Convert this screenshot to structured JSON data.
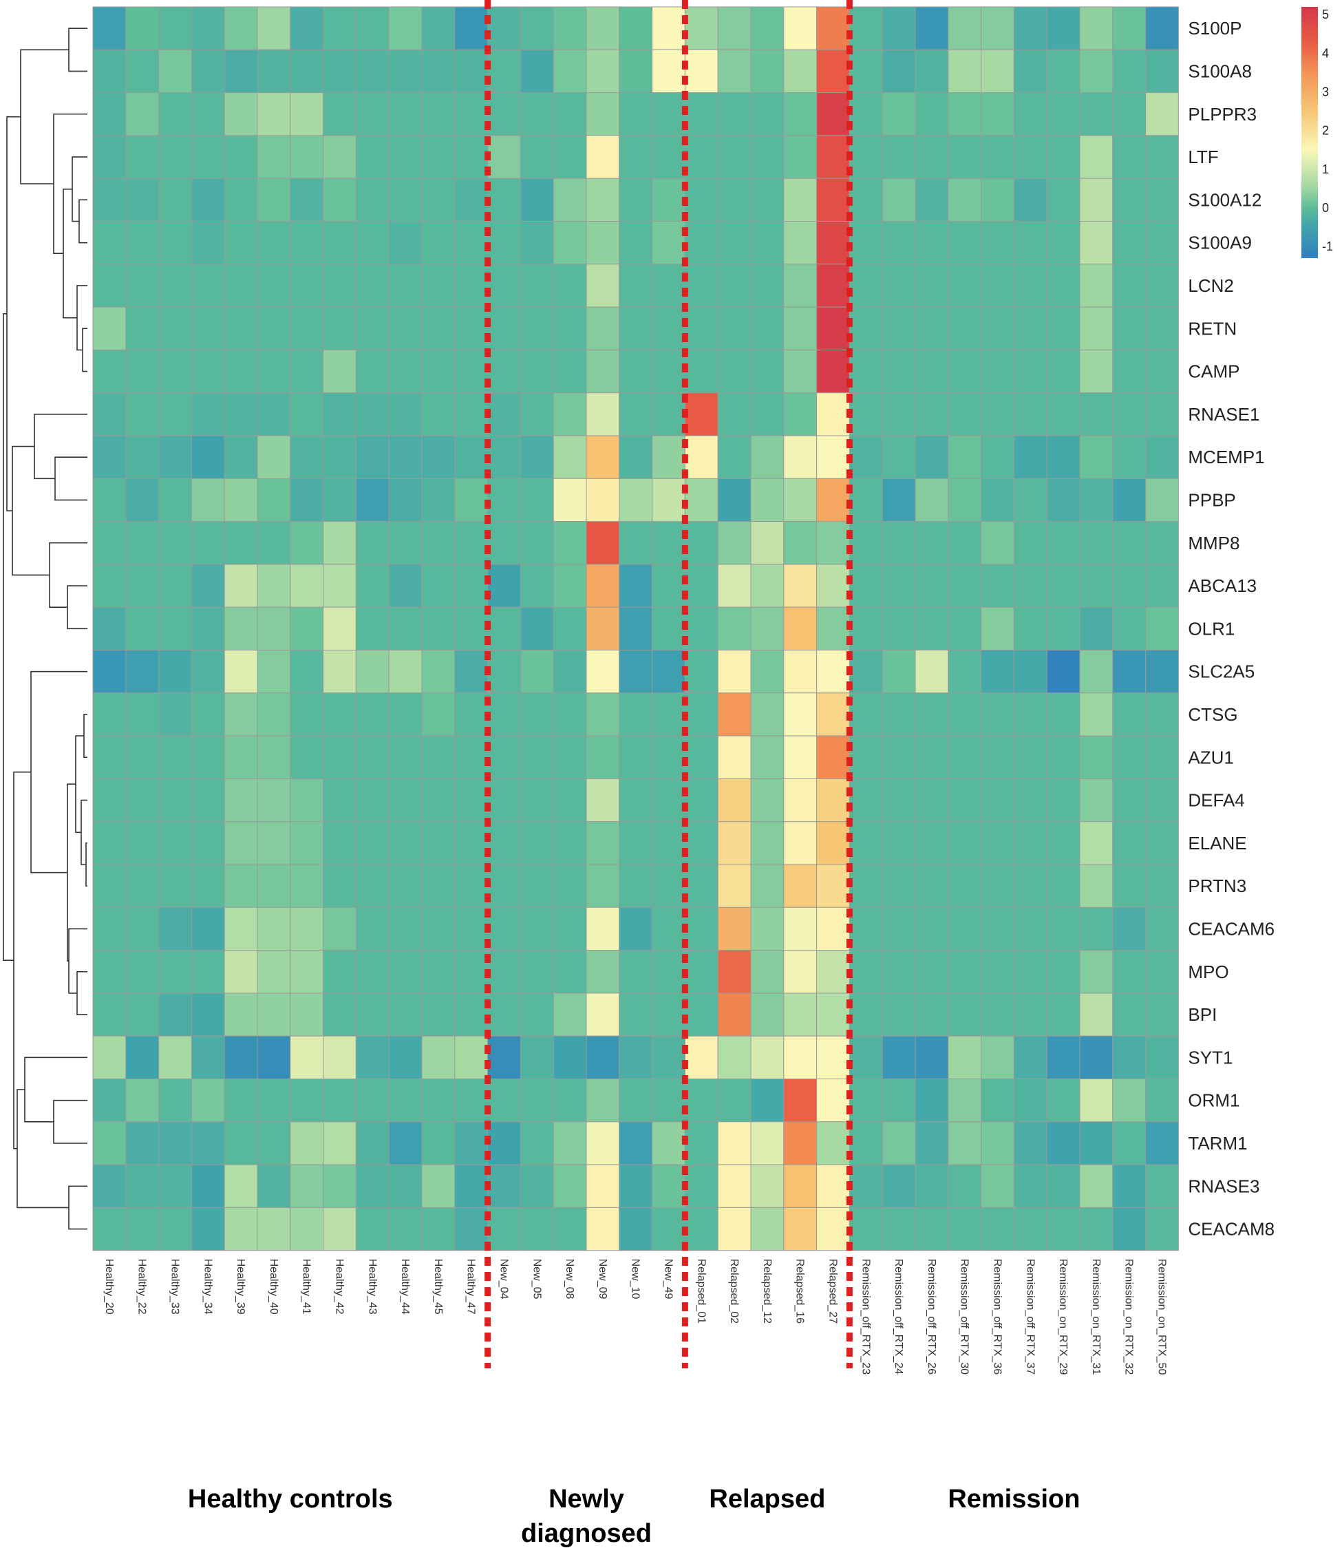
{
  "chart_data": {
    "type": "heatmap",
    "title": "",
    "genes": [
      "S100P",
      "S100A8",
      "PLPPR3",
      "LTF",
      "S100A12",
      "S100A9",
      "LCN2",
      "RETN",
      "CAMP",
      "RNASE1",
      "MCEMP1",
      "PPBP",
      "MMP8",
      "ABCA13",
      "OLR1",
      "SLC2A5",
      "CTSG",
      "AZU1",
      "DEFA4",
      "ELANE",
      "PRTN3",
      "CEACAM6",
      "MPO",
      "BPI",
      "SYT1",
      "ORM1",
      "TARM1",
      "RNASE3",
      "CEACAM8"
    ],
    "samples": [
      "Healthy_20",
      "Healthy_22",
      "Healthy_33",
      "Healthy_34",
      "Healthy_39",
      "Healthy_40",
      "Healthy_41",
      "Healthy_42",
      "Healthy_43",
      "Healthy_44",
      "Healthy_45",
      "Healthy_47",
      "New_04",
      "New_05",
      "New_08",
      "New_09",
      "New_10",
      "New_49",
      "Relapsed_01",
      "Relapsed_02",
      "Relapsed_12",
      "Relapsed_16",
      "Relapsed_27",
      "Remission_off_RTX_23",
      "Remission_off_RTX_24",
      "Remission_off_RTX_26",
      "Remission_off_RTX_30",
      "Remission_off_RTX_36",
      "Remission_off_RTX_37",
      "Remission_on_RTX_29",
      "Remission_on_RTX_31",
      "Remission_on_RTX_32",
      "Remission_on_RTX_50"
    ],
    "values": [
      [
        -0.6,
        0,
        -0.1,
        -0.2,
        0.2,
        0.5,
        -0.3,
        -0.1,
        -0.1,
        0.2,
        -0.2,
        -0.8,
        -0.2,
        -0.1,
        0.1,
        0.4,
        0,
        1.5,
        0.5,
        0.3,
        0.1,
        1.5,
        3.8,
        -0.1,
        -0.3,
        -0.8,
        0.3,
        0.3,
        -0.3,
        -0.4,
        0.4,
        0.1,
        -0.9
      ],
      [
        -0.2,
        -0.1,
        0.2,
        -0.2,
        -0.3,
        -0.2,
        -0.2,
        -0.2,
        -0.2,
        -0.2,
        -0.2,
        -0.2,
        -0.1,
        -0.4,
        0.2,
        0.5,
        0,
        1.5,
        1.5,
        0.3,
        0.1,
        0.6,
        4.3,
        -0.1,
        -0.3,
        -0.2,
        0.6,
        0.6,
        -0.2,
        -0.1,
        0.2,
        -0.1,
        -0.2
      ],
      [
        -0.2,
        0.2,
        -0.1,
        -0.1,
        0.4,
        0.6,
        0.6,
        -0.1,
        -0.1,
        -0.1,
        -0.1,
        -0.1,
        -0.1,
        -0.1,
        -0.1,
        0.4,
        -0.1,
        -0.1,
        -0.1,
        -0.1,
        -0.1,
        0.1,
        5.0,
        -0.1,
        0.1,
        -0.1,
        0.1,
        0.1,
        -0.1,
        -0.1,
        -0.1,
        -0.1,
        0.8
      ],
      [
        -0.2,
        -0.1,
        -0.1,
        -0.1,
        -0.1,
        0.2,
        0.2,
        0.3,
        -0.1,
        -0.1,
        -0.1,
        -0.1,
        0.3,
        -0.1,
        -0.1,
        1.6,
        -0.1,
        -0.1,
        -0.1,
        -0.1,
        -0.1,
        0.1,
        4.6,
        -0.1,
        -0.1,
        -0.1,
        -0.1,
        -0.1,
        -0.1,
        -0.1,
        0.7,
        -0.1,
        -0.1
      ],
      [
        -0.2,
        -0.2,
        -0.1,
        -0.3,
        -0.1,
        0.1,
        -0.2,
        0.1,
        -0.1,
        -0.1,
        -0.1,
        -0.2,
        -0.1,
        -0.4,
        0.3,
        0.5,
        -0.1,
        0.1,
        -0.1,
        -0.1,
        -0.1,
        0.6,
        4.6,
        -0.1,
        0.2,
        -0.2,
        0.2,
        0.1,
        -0.3,
        -0.1,
        0.8,
        -0.1,
        -0.1
      ],
      [
        -0.1,
        -0.1,
        -0.1,
        -0.2,
        -0.1,
        -0.1,
        -0.1,
        -0.1,
        -0.1,
        -0.2,
        -0.1,
        -0.1,
        -0.1,
        -0.2,
        0.2,
        0.4,
        -0.1,
        0.2,
        -0.1,
        -0.1,
        -0.1,
        0.5,
        4.8,
        -0.1,
        -0.1,
        -0.1,
        -0.1,
        -0.1,
        -0.1,
        -0.1,
        0.8,
        -0.1,
        -0.1
      ],
      [
        -0.1,
        -0.1,
        -0.1,
        -0.1,
        -0.1,
        -0.1,
        -0.1,
        -0.1,
        -0.1,
        -0.1,
        -0.1,
        -0.1,
        -0.1,
        -0.1,
        -0.1,
        0.8,
        -0.1,
        -0.1,
        -0.1,
        -0.1,
        -0.1,
        0.3,
        5.0,
        -0.1,
        -0.1,
        -0.1,
        -0.1,
        -0.1,
        -0.1,
        -0.1,
        0.5,
        -0.1,
        -0.1
      ],
      [
        0.4,
        -0.1,
        -0.1,
        -0.1,
        -0.1,
        -0.1,
        -0.1,
        -0.1,
        -0.1,
        -0.1,
        -0.1,
        -0.1,
        -0.1,
        -0.1,
        -0.1,
        0.3,
        -0.1,
        -0.1,
        -0.1,
        -0.1,
        -0.1,
        0.3,
        5.1,
        -0.1,
        -0.1,
        -0.1,
        -0.1,
        -0.1,
        -0.1,
        -0.1,
        0.5,
        -0.1,
        -0.1
      ],
      [
        -0.1,
        -0.1,
        -0.1,
        -0.1,
        -0.1,
        -0.1,
        -0.1,
        0.4,
        -0.1,
        -0.1,
        -0.1,
        -0.1,
        -0.1,
        -0.1,
        -0.1,
        0.3,
        -0.1,
        -0.1,
        -0.1,
        -0.1,
        -0.1,
        0.3,
        5.1,
        -0.1,
        -0.1,
        -0.1,
        -0.1,
        -0.1,
        -0.1,
        -0.1,
        0.5,
        -0.1,
        -0.1
      ],
      [
        -0.2,
        -0.1,
        -0.1,
        -0.2,
        -0.2,
        -0.2,
        -0.1,
        -0.2,
        -0.2,
        -0.2,
        -0.1,
        -0.1,
        -0.2,
        -0.1,
        0.2,
        1.1,
        -0.1,
        -0.1,
        4.3,
        -0.1,
        -0.1,
        0.1,
        1.6,
        -0.1,
        -0.1,
        -0.1,
        -0.1,
        -0.1,
        -0.1,
        -0.1,
        -0.1,
        -0.1,
        -0.1
      ],
      [
        -0.3,
        -0.2,
        -0.3,
        -0.5,
        -0.2,
        0.4,
        -0.2,
        -0.2,
        -0.3,
        -0.3,
        -0.3,
        -0.2,
        -0.2,
        -0.3,
        0.6,
        2.6,
        -0.2,
        0.4,
        1.6,
        -0.1,
        0.3,
        1.4,
        1.5,
        -0.2,
        -0.1,
        -0.3,
        0.1,
        -0.1,
        -0.4,
        -0.4,
        0.1,
        -0.1,
        -0.2
      ],
      [
        -0.1,
        -0.3,
        -0.1,
        0.3,
        0.4,
        0.1,
        -0.3,
        -0.2,
        -0.6,
        -0.3,
        -0.2,
        0.1,
        -0.1,
        -0.1,
        1.4,
        1.7,
        0.6,
        0.9,
        0.5,
        -0.5,
        0.4,
        0.6,
        3.1,
        -0.1,
        -0.6,
        0.3,
        0.1,
        -0.2,
        -0.1,
        -0.3,
        -0.2,
        -0.5,
        0.3
      ],
      [
        -0.1,
        -0.1,
        -0.1,
        -0.1,
        -0.1,
        -0.1,
        0.1,
        0.6,
        -0.1,
        -0.1,
        -0.1,
        -0.1,
        -0.1,
        -0.1,
        0.1,
        4.4,
        -0.1,
        -0.1,
        -0.1,
        0.3,
        0.9,
        0.2,
        0.3,
        -0.1,
        -0.1,
        -0.1,
        -0.1,
        0.2,
        -0.1,
        -0.1,
        -0.1,
        -0.1,
        -0.1
      ],
      [
        -0.1,
        -0.1,
        -0.1,
        -0.3,
        0.9,
        0.5,
        0.7,
        0.7,
        -0.1,
        -0.3,
        -0.1,
        -0.1,
        -0.5,
        -0.1,
        0.1,
        3.1,
        -0.6,
        -0.1,
        -0.1,
        1.1,
        0.6,
        1.9,
        0.8,
        -0.1,
        -0.1,
        -0.1,
        -0.1,
        -0.1,
        -0.1,
        -0.1,
        -0.1,
        -0.1,
        -0.1
      ],
      [
        -0.3,
        -0.1,
        -0.1,
        -0.2,
        0.3,
        0.3,
        0.1,
        1.1,
        -0.1,
        -0.1,
        -0.1,
        -0.1,
        -0.1,
        -0.4,
        -0.1,
        2.9,
        -0.6,
        -0.1,
        -0.1,
        0.2,
        0.3,
        2.6,
        0.3,
        -0.1,
        -0.1,
        -0.1,
        -0.1,
        0.3,
        -0.1,
        -0.1,
        -0.3,
        -0.1,
        0.1
      ],
      [
        -0.8,
        -0.6,
        -0.4,
        -0.2,
        1.2,
        0.3,
        -0.1,
        0.9,
        0.4,
        0.6,
        0.2,
        -0.3,
        -0.1,
        0.1,
        -0.2,
        1.5,
        -0.6,
        -0.6,
        -0.1,
        1.6,
        0.2,
        1.6,
        1.5,
        -0.2,
        0.1,
        1.1,
        -0.1,
        -0.4,
        -0.4,
        -1.2,
        0.3,
        -0.8,
        -0.7
      ],
      [
        -0.1,
        -0.1,
        -0.2,
        -0.1,
        0.3,
        0.2,
        -0.1,
        -0.1,
        -0.1,
        -0.1,
        0.1,
        -0.1,
        -0.1,
        -0.1,
        -0.1,
        0.2,
        -0.1,
        -0.1,
        -0.1,
        3.4,
        0.3,
        1.5,
        2.2,
        -0.1,
        -0.1,
        -0.1,
        -0.1,
        -0.1,
        -0.1,
        -0.1,
        0.5,
        -0.1,
        -0.1
      ],
      [
        -0.1,
        -0.1,
        -0.1,
        -0.1,
        0.2,
        0.2,
        -0.1,
        -0.1,
        -0.1,
        -0.1,
        -0.1,
        -0.1,
        -0.1,
        -0.1,
        -0.1,
        0.1,
        -0.1,
        -0.1,
        -0.1,
        1.6,
        0.3,
        1.5,
        3.6,
        -0.1,
        -0.1,
        -0.1,
        -0.1,
        -0.1,
        -0.1,
        -0.1,
        0.1,
        -0.1,
        -0.1
      ],
      [
        -0.1,
        -0.1,
        -0.1,
        -0.1,
        0.3,
        0.3,
        0.2,
        -0.1,
        -0.1,
        -0.1,
        -0.1,
        -0.1,
        -0.1,
        -0.1,
        -0.1,
        0.9,
        -0.1,
        -0.1,
        -0.1,
        2.3,
        0.3,
        1.6,
        2.3,
        -0.1,
        -0.1,
        -0.1,
        -0.1,
        -0.1,
        -0.1,
        -0.1,
        0.3,
        -0.1,
        -0.1
      ],
      [
        -0.1,
        -0.1,
        -0.1,
        -0.1,
        0.3,
        0.3,
        0.2,
        -0.1,
        -0.1,
        -0.1,
        -0.1,
        -0.1,
        -0.1,
        -0.1,
        -0.1,
        0.2,
        -0.1,
        -0.1,
        -0.1,
        2.1,
        0.3,
        1.6,
        2.5,
        -0.1,
        -0.1,
        -0.1,
        -0.1,
        -0.1,
        -0.1,
        -0.1,
        0.7,
        -0.1,
        -0.1
      ],
      [
        -0.1,
        -0.1,
        -0.1,
        -0.1,
        0.2,
        0.2,
        0.2,
        -0.1,
        -0.1,
        -0.1,
        -0.1,
        -0.1,
        -0.1,
        -0.1,
        -0.1,
        0.2,
        -0.1,
        -0.1,
        -0.1,
        2.0,
        0.3,
        2.4,
        2.1,
        -0.1,
        -0.1,
        -0.1,
        -0.1,
        -0.1,
        -0.1,
        -0.1,
        0.5,
        -0.1,
        -0.1
      ],
      [
        -0.1,
        -0.1,
        -0.3,
        -0.4,
        0.7,
        0.5,
        0.5,
        0.2,
        -0.1,
        -0.1,
        -0.1,
        -0.1,
        -0.1,
        -0.1,
        -0.1,
        1.4,
        -0.4,
        -0.1,
        -0.1,
        2.9,
        0.4,
        1.4,
        1.6,
        -0.1,
        -0.1,
        -0.1,
        -0.1,
        -0.1,
        -0.1,
        -0.1,
        -0.1,
        -0.3,
        -0.1
      ],
      [
        -0.1,
        -0.1,
        -0.1,
        -0.1,
        0.9,
        0.5,
        0.5,
        -0.1,
        -0.1,
        -0.1,
        -0.1,
        -0.1,
        -0.1,
        -0.1,
        -0.1,
        0.3,
        -0.1,
        -0.1,
        -0.1,
        4.1,
        0.3,
        1.4,
        0.9,
        -0.1,
        -0.1,
        -0.1,
        -0.1,
        -0.1,
        -0.1,
        -0.1,
        0.3,
        -0.1,
        -0.1
      ],
      [
        -0.1,
        -0.1,
        -0.3,
        -0.4,
        0.4,
        0.4,
        0.4,
        -0.1,
        -0.1,
        -0.1,
        -0.1,
        -0.1,
        -0.1,
        -0.1,
        0.3,
        1.4,
        -0.1,
        -0.1,
        -0.1,
        3.7,
        0.3,
        0.7,
        0.7,
        -0.1,
        -0.1,
        -0.1,
        -0.1,
        -0.1,
        -0.1,
        -0.1,
        0.8,
        -0.1,
        -0.1
      ],
      [
        0.6,
        -0.5,
        0.6,
        -0.3,
        -0.9,
        -1.0,
        1.2,
        1.1,
        -0.3,
        -0.4,
        0.5,
        0.6,
        -1.0,
        -0.2,
        -0.5,
        -0.8,
        -0.3,
        -0.2,
        1.6,
        0.7,
        1.1,
        1.5,
        1.5,
        -0.2,
        -0.8,
        -0.9,
        0.5,
        0.3,
        -0.3,
        -0.8,
        -0.9,
        -0.3,
        -0.2
      ],
      [
        -0.2,
        0.2,
        -0.1,
        0.2,
        -0.1,
        -0.1,
        -0.1,
        -0.1,
        -0.1,
        -0.1,
        -0.1,
        -0.1,
        -0.1,
        -0.1,
        -0.1,
        0.3,
        -0.1,
        -0.1,
        -0.1,
        -0.1,
        -0.4,
        4.2,
        1.5,
        -0.1,
        -0.1,
        -0.4,
        0.3,
        -0.1,
        -0.2,
        -0.1,
        1.0,
        0.3,
        -0.1
      ],
      [
        0.1,
        -0.3,
        -0.3,
        -0.3,
        -0.1,
        -0.1,
        0.6,
        0.7,
        -0.2,
        -0.6,
        -0.1,
        -0.3,
        -0.5,
        -0.1,
        0.3,
        1.4,
        -0.6,
        0.4,
        -0.1,
        1.6,
        1.2,
        3.6,
        0.6,
        -0.1,
        0.2,
        -0.3,
        0.3,
        0.2,
        -0.3,
        -0.5,
        -0.4,
        -0.1,
        -0.6
      ],
      [
        -0.3,
        -0.2,
        -0.2,
        -0.5,
        0.7,
        -0.2,
        0.3,
        0.2,
        -0.2,
        -0.2,
        0.4,
        -0.4,
        -0.3,
        -0.2,
        0.2,
        1.6,
        -0.4,
        0.1,
        -0.1,
        1.6,
        0.9,
        2.6,
        1.6,
        -0.2,
        -0.3,
        -0.2,
        -0.1,
        0.2,
        -0.2,
        -0.2,
        0.5,
        -0.4,
        -0.1
      ],
      [
        -0.1,
        -0.1,
        -0.1,
        -0.4,
        0.6,
        0.6,
        0.5,
        0.8,
        -0.1,
        -0.1,
        -0.1,
        -0.3,
        -0.1,
        -0.1,
        -0.1,
        1.6,
        -0.4,
        -0.1,
        -0.1,
        1.6,
        0.6,
        2.4,
        1.6,
        -0.1,
        -0.1,
        -0.1,
        -0.1,
        -0.1,
        -0.1,
        -0.1,
        -0.1,
        -0.4,
        -0.1
      ]
    ],
    "color_scale": {
      "min": -1.3,
      "max": 5.2,
      "stops": [
        {
          "v": -1.3,
          "c": "#2f80bf"
        },
        {
          "v": -0.5,
          "c": "#3fa3ad"
        },
        {
          "v": 0,
          "c": "#5dbd98"
        },
        {
          "v": 0.5,
          "c": "#9ed6a1"
        },
        {
          "v": 1.5,
          "c": "#fbf7b8"
        },
        {
          "v": 2.5,
          "c": "#f7c674"
        },
        {
          "v": 3.5,
          "c": "#f49255"
        },
        {
          "v": 4.3,
          "c": "#e85a44"
        },
        {
          "v": 5.2,
          "c": "#d4384a"
        }
      ]
    },
    "legend": {
      "ticks": [
        5,
        4,
        3,
        2,
        1,
        0,
        -1
      ],
      "placement": "top-right"
    },
    "groups": [
      {
        "label": "Healthy controls",
        "start": 0,
        "end": 11
      },
      {
        "label": "Newly\ndiagnosed",
        "start": 12,
        "end": 17
      },
      {
        "label": "Relapsed",
        "start": 18,
        "end": 22
      },
      {
        "label": "Remission",
        "start": 23,
        "end": 32
      }
    ],
    "dendrogram": "rows",
    "grid": true,
    "divider_color": "#e02020"
  }
}
